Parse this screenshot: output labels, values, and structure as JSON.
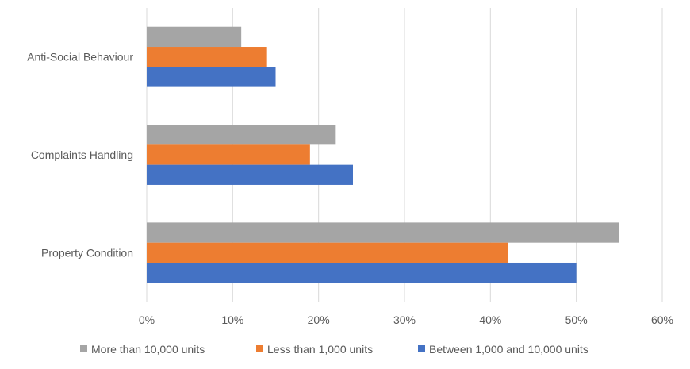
{
  "chart_data": {
    "type": "bar",
    "orientation": "horizontal",
    "categories": [
      "Anti-Social Behaviour",
      "Complaints Handling",
      "Property Condition"
    ],
    "series": [
      {
        "name": "More than 10,000 units",
        "color": "#a5a5a5",
        "values": [
          11,
          22,
          55
        ]
      },
      {
        "name": "Less than 1,000 units",
        "color": "#ed7d31",
        "values": [
          14,
          19,
          42
        ]
      },
      {
        "name": "Between 1,000 and 10,000 units",
        "color": "#4472c4",
        "values": [
          15,
          24,
          50
        ]
      }
    ],
    "xlim": [
      0,
      60
    ],
    "xticks": [
      "0%",
      "10%",
      "20%",
      "30%",
      "40%",
      "50%",
      "60%"
    ],
    "grid": "vertical",
    "legend": "bottom",
    "title": "",
    "xlabel": "",
    "ylabel": ""
  }
}
